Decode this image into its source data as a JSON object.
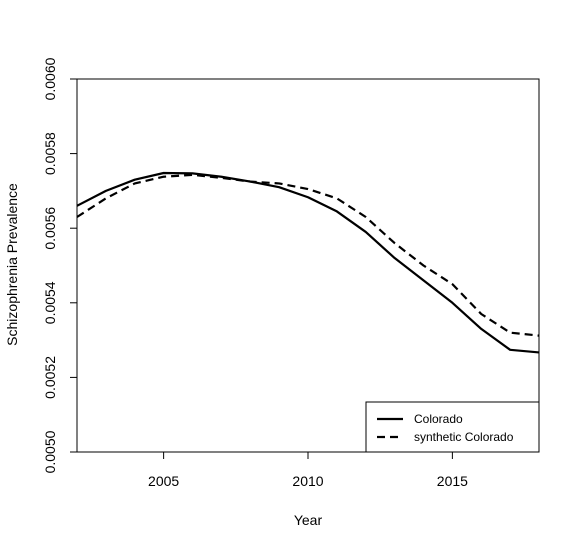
{
  "chart_data": {
    "type": "line",
    "xlabel": "Year",
    "ylabel": "Schizophrenia Prevalence",
    "xlim": [
      2002,
      2018
    ],
    "ylim": [
      0.005,
      0.006
    ],
    "x_ticks": [
      2005,
      2010,
      2015
    ],
    "x_tick_labels": [
      "2005",
      "2010",
      "2015"
    ],
    "y_ticks": [
      0.005,
      0.0052,
      0.0054,
      0.0056,
      0.0058,
      0.006
    ],
    "y_tick_labels": [
      "0.0050",
      "0.0052",
      "0.0054",
      "0.0056",
      "0.0058",
      "0.0060"
    ],
    "grid": false,
    "legend_position": "bottom-right",
    "x": [
      2002,
      2003,
      2004,
      2005,
      2006,
      2007,
      2008,
      2009,
      2010,
      2011,
      2012,
      2013,
      2014,
      2015,
      2016,
      2017,
      2018
    ],
    "series": [
      {
        "name": "Colorado",
        "line_style": "solid",
        "color": "#000000",
        "values": [
          0.00566,
          0.0057,
          0.00573,
          0.005748,
          0.005747,
          0.005738,
          0.005725,
          0.00571,
          0.005683,
          0.005645,
          0.00559,
          0.00552,
          0.00546,
          0.0054,
          0.00533,
          0.005274,
          0.005267
        ]
      },
      {
        "name": "synthetic Colorado",
        "line_style": "dashed",
        "color": "#000000",
        "values": [
          0.00563,
          0.00568,
          0.00572,
          0.005738,
          0.005743,
          0.005735,
          0.005725,
          0.00572,
          0.005705,
          0.00568,
          0.00563,
          0.00556,
          0.0055,
          0.00545,
          0.00537,
          0.00532,
          0.005312
        ]
      }
    ]
  }
}
